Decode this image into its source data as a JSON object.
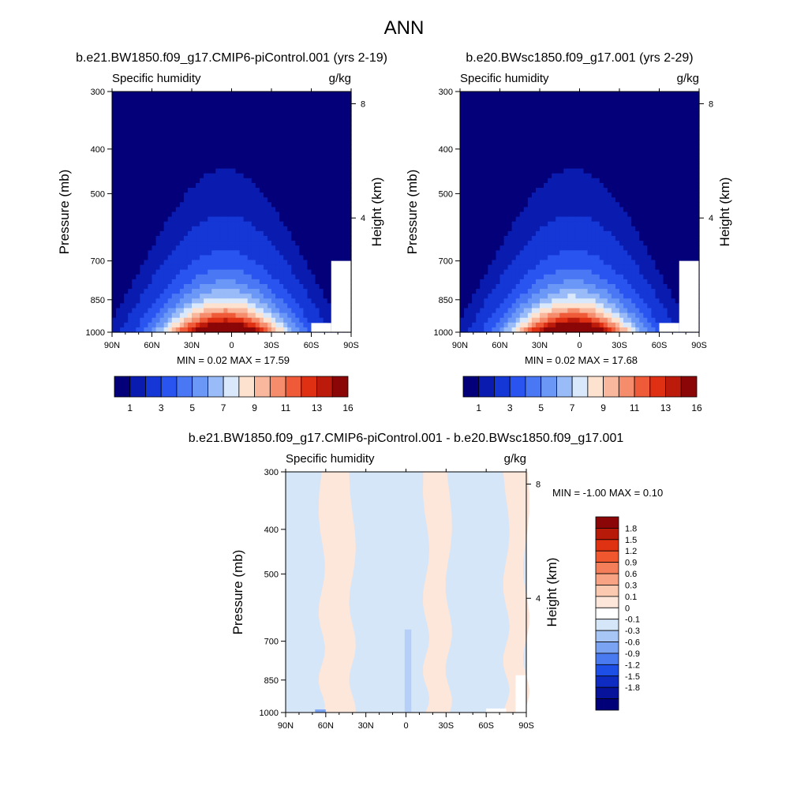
{
  "page_title": "ANN",
  "chart_data": [
    {
      "type": "heatmap",
      "id": "top-left",
      "title": "b.e21.BW1850.f09_g17.CMIP6-piControl.001 (yrs 2-19)",
      "left_string": "Specific humidity",
      "right_string": "g/kg",
      "ylabel": "Pressure (mb)",
      "ylabel_right": "Height (km)",
      "x_ticks": [
        "90N",
        "60N",
        "30N",
        "0",
        "30S",
        "60S",
        "90S"
      ],
      "x_range": [
        90,
        -90
      ],
      "y_ticks": [
        "300",
        "400",
        "500",
        "700",
        "850",
        "1000"
      ],
      "y_tick_values": [
        300,
        400,
        500,
        700,
        850,
        1000
      ],
      "y_range": [
        1000,
        300
      ],
      "height_ticks": [
        "8",
        "4"
      ],
      "height_tick_values": [
        8,
        4
      ],
      "min_max_label": "MIN =   0.02  MAX =  17.59",
      "min": 0.02,
      "max": 17.59,
      "peak_lat": 5,
      "colorbar": {
        "orientation": "horizontal",
        "tick_labels": [
          "1",
          "3",
          "5",
          "7",
          "9",
          "11",
          "13",
          "16"
        ],
        "levels": [
          0.5,
          1,
          2,
          3,
          4,
          5,
          6,
          7,
          8,
          9,
          10,
          11,
          12,
          13,
          14,
          16
        ],
        "colors": [
          "#04007a",
          "#0a1cb0",
          "#1437d6",
          "#2a54f0",
          "#4a78f5",
          "#6b98f7",
          "#99bbf7",
          "#dae8fb",
          "#fde2d0",
          "#f9b79d",
          "#f58c6c",
          "#ef5a38",
          "#e03014",
          "#bc1a0a",
          "#8b0606"
        ]
      }
    },
    {
      "type": "heatmap",
      "id": "top-right",
      "title": "b.e20.BWsc1850.f09_g17.001 (yrs 2-29)",
      "left_string": "Specific humidity",
      "right_string": "g/kg",
      "ylabel": "Pressure (mb)",
      "ylabel_right": "Height (km)",
      "x_ticks": [
        "90N",
        "60N",
        "30N",
        "0",
        "30S",
        "60S",
        "90S"
      ],
      "x_range": [
        90,
        -90
      ],
      "y_ticks": [
        "300",
        "400",
        "500",
        "700",
        "850",
        "1000"
      ],
      "y_tick_values": [
        300,
        400,
        500,
        700,
        850,
        1000
      ],
      "y_range": [
        1000,
        300
      ],
      "height_ticks": [
        "8",
        "4"
      ],
      "height_tick_values": [
        8,
        4
      ],
      "min_max_label": "MIN =   0.02  MAX =  17.68",
      "min": 0.02,
      "max": 17.68,
      "peak_lat": 5,
      "colorbar": {
        "orientation": "horizontal",
        "tick_labels": [
          "1",
          "3",
          "5",
          "7",
          "9",
          "11",
          "13",
          "16"
        ],
        "levels": [
          0.5,
          1,
          2,
          3,
          4,
          5,
          6,
          7,
          8,
          9,
          10,
          11,
          12,
          13,
          14,
          16
        ],
        "colors": [
          "#04007a",
          "#0a1cb0",
          "#1437d6",
          "#2a54f0",
          "#4a78f5",
          "#6b98f7",
          "#99bbf7",
          "#dae8fb",
          "#fde2d0",
          "#f9b79d",
          "#f58c6c",
          "#ef5a38",
          "#e03014",
          "#bc1a0a",
          "#8b0606"
        ]
      }
    },
    {
      "type": "heatmap",
      "id": "bottom-difference",
      "title": "b.e21.BW1850.f09_g17.CMIP6-piControl.001 - b.e20.BWsc1850.f09_g17.001",
      "left_string": "Specific humidity",
      "right_string": "g/kg",
      "ylabel": "Pressure (mb)",
      "ylabel_right": "Height (km)",
      "x_ticks": [
        "90N",
        "60N",
        "30N",
        "0",
        "30S",
        "60S",
        "90S"
      ],
      "x_range": [
        90,
        -90
      ],
      "y_ticks": [
        "300",
        "400",
        "500",
        "700",
        "850",
        "1000"
      ],
      "y_tick_values": [
        300,
        400,
        500,
        700,
        850,
        1000
      ],
      "y_range": [
        1000,
        300
      ],
      "height_ticks": [
        "8",
        "4"
      ],
      "height_tick_values": [
        8,
        4
      ],
      "min_max_label": "MIN =  -1.00  MAX =   0.10",
      "min": -1.0,
      "max": 0.1,
      "positive_bands_lat": [
        [
          63,
          40
        ],
        [
          -15,
          -32
        ],
        [
          -75,
          -90
        ]
      ],
      "colorbar": {
        "orientation": "vertical",
        "labels": [
          "1.8",
          "1.5",
          "1.2",
          "0.9",
          "0.6",
          "0.3",
          "0.1",
          "0",
          "-0.1",
          "-0.3",
          "-0.6",
          "-0.9",
          "-1.2",
          "-1.5",
          "-1.8"
        ],
        "colors": [
          "#8b0606",
          "#b81a0a",
          "#de3212",
          "#f0572f",
          "#f47e5a",
          "#f8a484",
          "#fbc9b0",
          "#fde6da",
          "#ffffff",
          "#d5e6f9",
          "#a8c6f5",
          "#7aa3f2",
          "#4a7af0",
          "#1d4ee6",
          "#0f2cc2",
          "#06139a",
          "#020078"
        ]
      }
    }
  ]
}
